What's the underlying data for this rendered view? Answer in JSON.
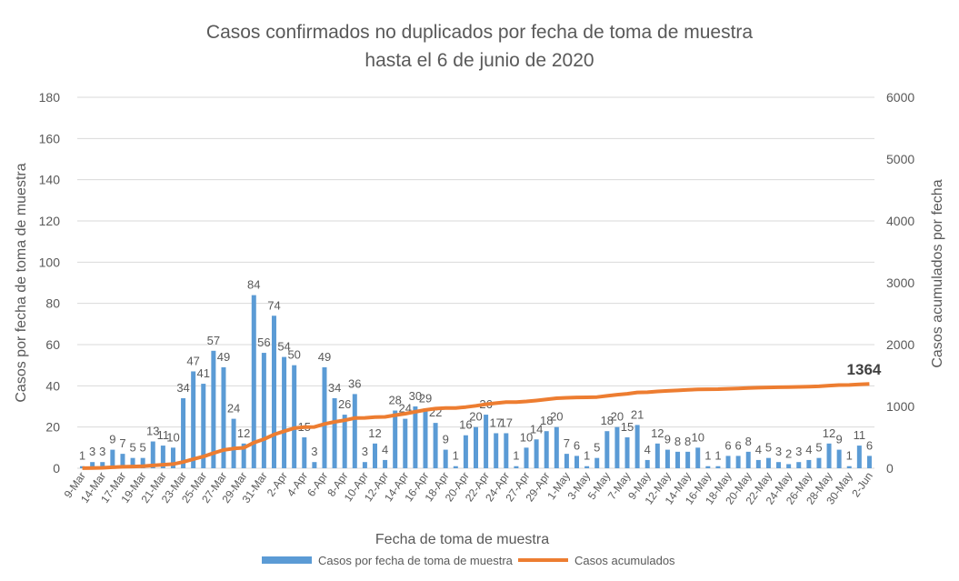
{
  "chart_data": {
    "type": "bar+line",
    "title_line1": "Casos confirmados no duplicados por fecha de toma de muestra",
    "title_line2": "hasta el 6 de junio de 2020",
    "xlabel": "Fecha de toma de muestra",
    "ylabel_left": "Casos por fecha de toma de muestra",
    "ylabel_right": "Casos acumulados por fecha",
    "ylim_left": [
      0,
      180
    ],
    "yticks_left": [
      0,
      20,
      40,
      60,
      80,
      100,
      120,
      140,
      160,
      180
    ],
    "ylim_right": [
      0,
      6000
    ],
    "yticks_right": [
      0,
      1000,
      2000,
      3000,
      4000,
      5000,
      6000
    ],
    "grid": true,
    "legend_position": "bottom",
    "x_tick_labels": [
      "9-Mar",
      "14-Mar",
      "17-Mar",
      "19-Mar",
      "21-Mar",
      "23-Mar",
      "25-Mar",
      "27-Mar",
      "29-Mar",
      "31-Mar",
      "2-Apr",
      "4-Apr",
      "6-Apr",
      "8-Apr",
      "10-Apr",
      "12-Apr",
      "14-Apr",
      "16-Apr",
      "18-Apr",
      "20-Apr",
      "22-Apr",
      "24-Apr",
      "27-Apr",
      "29-Apr",
      "1-May",
      "3-May",
      "5-May",
      "7-May",
      "9-May",
      "12-May",
      "14-May",
      "16-May",
      "18-May",
      "20-May",
      "22-May",
      "24-May",
      "26-May",
      "28-May",
      "30-May",
      "2-Jun"
    ],
    "series": [
      {
        "name": "Casos por fecha de toma de muestra",
        "type": "bar",
        "color": "#5b9bd5",
        "values": [
          1,
          3,
          3,
          9,
          7,
          5,
          5,
          13,
          11,
          10,
          34,
          47,
          41,
          57,
          49,
          24,
          12,
          84,
          56,
          74,
          54,
          50,
          15,
          3,
          49,
          34,
          26,
          36,
          3,
          12,
          4,
          28,
          24,
          30,
          29,
          22,
          9,
          1,
          16,
          20,
          26,
          17,
          17,
          1,
          10,
          14,
          18,
          20,
          7,
          6,
          1,
          5,
          18,
          20,
          15,
          21,
          4,
          12,
          9,
          8,
          8,
          10,
          1,
          1,
          6,
          6,
          8,
          4,
          5,
          3,
          2,
          3,
          4,
          5,
          12,
          9,
          1,
          11,
          6
        ]
      },
      {
        "name": "Casos acumulados",
        "type": "line",
        "color": "#ed7d31",
        "final_value": 1364
      }
    ],
    "final_annotation": "1364"
  }
}
